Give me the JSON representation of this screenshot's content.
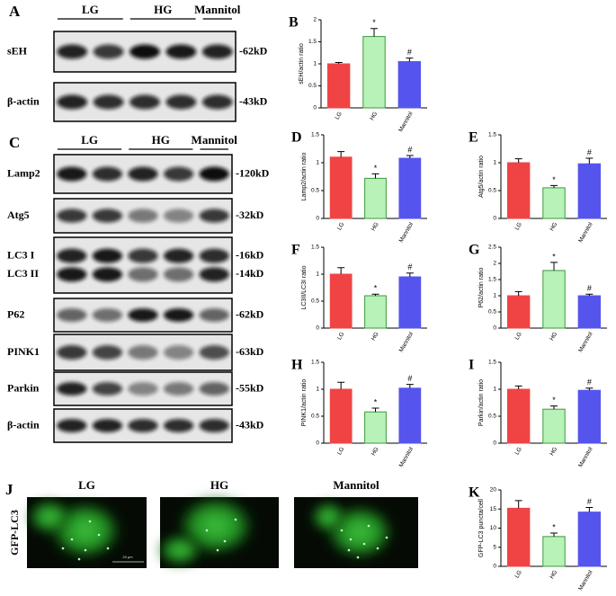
{
  "chart_data": [
    {
      "type": "bar",
      "panel": "B",
      "ylabel": "sEH/actin ratio",
      "categories": [
        "LG",
        "HG",
        "Mannitol"
      ],
      "values": [
        1.0,
        1.62,
        1.05
      ],
      "errors": [
        0.03,
        0.18,
        0.08
      ],
      "colors": [
        "#f04444",
        "#b8f2b8",
        "#5555ee"
      ],
      "annotations": [
        null,
        "*",
        "#"
      ],
      "ylim": [
        0,
        2
      ],
      "yticks": [
        0.0,
        0.5,
        1.0,
        1.5,
        2.0
      ]
    },
    {
      "type": "bar",
      "panel": "D",
      "ylabel": "Lamp2/actin ratio",
      "categories": [
        "LG",
        "HG",
        "Mannitol"
      ],
      "values": [
        1.1,
        0.72,
        1.08
      ],
      "errors": [
        0.1,
        0.08,
        0.05
      ],
      "colors": [
        "#f04444",
        "#b8f2b8",
        "#5555ee"
      ],
      "annotations": [
        null,
        "*",
        "#"
      ],
      "ylim": [
        0,
        1.5
      ],
      "yticks": [
        0.0,
        0.5,
        1.0,
        1.5
      ]
    },
    {
      "type": "bar",
      "panel": "E",
      "ylabel": "Atg5/actin ratio",
      "categories": [
        "LG",
        "HG",
        "Mannitol"
      ],
      "values": [
        1.0,
        0.55,
        0.98
      ],
      "errors": [
        0.07,
        0.04,
        0.1
      ],
      "colors": [
        "#f04444",
        "#b8f2b8",
        "#5555ee"
      ],
      "annotations": [
        null,
        "*",
        "#"
      ],
      "ylim": [
        0,
        1.5
      ],
      "yticks": [
        0.0,
        0.5,
        1.0,
        1.5
      ]
    },
    {
      "type": "bar",
      "panel": "F",
      "ylabel": "LC3II/LC3I ratio",
      "categories": [
        "LG",
        "HG",
        "Mannitol"
      ],
      "values": [
        1.0,
        0.6,
        0.95
      ],
      "errors": [
        0.12,
        0.03,
        0.07
      ],
      "colors": [
        "#f04444",
        "#b8f2b8",
        "#5555ee"
      ],
      "annotations": [
        null,
        "*",
        "#"
      ],
      "ylim": [
        0,
        1.5
      ],
      "yticks": [
        0.0,
        0.5,
        1.0,
        1.5
      ]
    },
    {
      "type": "bar",
      "panel": "G",
      "ylabel": "P62/actin ratio",
      "categories": [
        "LG",
        "HG",
        "Mannitol"
      ],
      "values": [
        1.0,
        1.78,
        1.0
      ],
      "errors": [
        0.13,
        0.25,
        0.05
      ],
      "colors": [
        "#f04444",
        "#b8f2b8",
        "#5555ee"
      ],
      "annotations": [
        null,
        "*",
        "#"
      ],
      "ylim": [
        0,
        2.5
      ],
      "yticks": [
        0.0,
        0.5,
        1.0,
        1.5,
        2.0,
        2.5
      ]
    },
    {
      "type": "bar",
      "panel": "H",
      "ylabel": "PINK1/actin ratio",
      "categories": [
        "LG",
        "HG",
        "Mannitol"
      ],
      "values": [
        1.0,
        0.58,
        1.02
      ],
      "errors": [
        0.13,
        0.07,
        0.07
      ],
      "colors": [
        "#f04444",
        "#b8f2b8",
        "#5555ee"
      ],
      "annotations": [
        null,
        "*",
        "#"
      ],
      "ylim": [
        0,
        1.5
      ],
      "yticks": [
        0.0,
        0.5,
        1.0,
        1.5
      ]
    },
    {
      "type": "bar",
      "panel": "I",
      "ylabel": "Parkin/actin ratio",
      "categories": [
        "LG",
        "HG",
        "Mannitol"
      ],
      "values": [
        1.0,
        0.63,
        0.98
      ],
      "errors": [
        0.06,
        0.06,
        0.04
      ],
      "colors": [
        "#f04444",
        "#b8f2b8",
        "#5555ee"
      ],
      "annotations": [
        null,
        "*",
        "#"
      ],
      "ylim": [
        0,
        1.5
      ],
      "yticks": [
        0.0,
        0.5,
        1.0,
        1.5
      ]
    },
    {
      "type": "bar",
      "panel": "K",
      "ylabel": "GFP-LC3 puncta/cell",
      "categories": [
        "LG",
        "HG",
        "Mannitol"
      ],
      "values": [
        15.2,
        7.8,
        14.2
      ],
      "errors": [
        2.0,
        0.9,
        1.2
      ],
      "colors": [
        "#f04444",
        "#b8f2b8",
        "#5555ee"
      ],
      "annotations": [
        null,
        "*",
        "#"
      ],
      "ylim": [
        0,
        20
      ],
      "yticks": [
        0,
        5,
        10,
        15,
        20
      ]
    }
  ],
  "blots": [
    {
      "panel": "A",
      "groups": [
        "LG",
        "HG",
        "Mannitol"
      ],
      "rows": [
        {
          "labels": [
            "sEH"
          ],
          "sizes": [
            "-62kD"
          ]
        },
        {
          "labels": [
            "β-actin"
          ],
          "sizes": [
            "-43kD"
          ]
        }
      ]
    },
    {
      "panel": "C",
      "groups": [
        "LG",
        "HG",
        "Mannitol"
      ],
      "rows": [
        {
          "labels": [
            "Lamp2"
          ],
          "sizes": [
            "-120kD"
          ]
        },
        {
          "labels": [
            "Atg5"
          ],
          "sizes": [
            "-32kD"
          ]
        },
        {
          "labels": [
            "LC3 I",
            "LC3 II"
          ],
          "sizes": [
            "-16kD",
            "-14kD"
          ]
        },
        {
          "labels": [
            "P62"
          ],
          "sizes": [
            "-62kD"
          ]
        },
        {
          "labels": [
            "PINK1"
          ],
          "sizes": [
            "-63kD"
          ]
        },
        {
          "labels": [
            "Parkin"
          ],
          "sizes": [
            "-55kD"
          ]
        },
        {
          "labels": [
            "β-actin"
          ],
          "sizes": [
            "-43kD"
          ]
        }
      ]
    }
  ],
  "images": {
    "panel": "J",
    "channel": "GFP-LC3",
    "conditions": [
      "LG",
      "HG",
      "Mannitol"
    ],
    "scale_bar": "25 μm"
  }
}
